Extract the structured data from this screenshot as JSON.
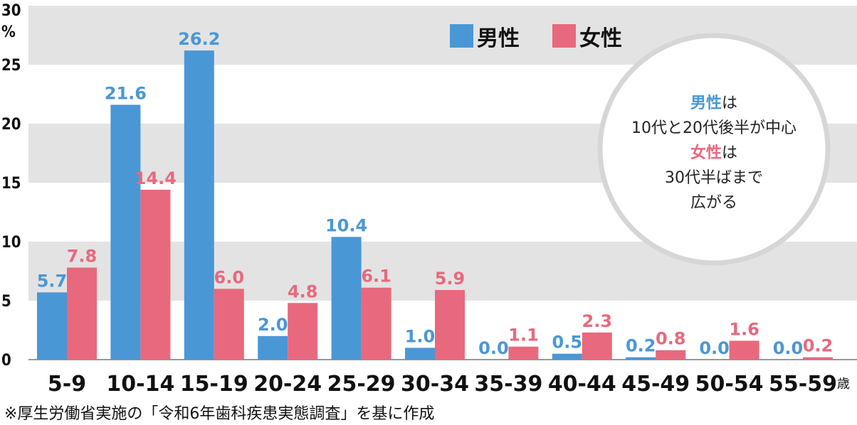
{
  "chart_data": {
    "type": "bar",
    "categories": [
      "5-9",
      "10-14",
      "15-19",
      "20-24",
      "25-29",
      "30-34",
      "35-39",
      "40-44",
      "45-49",
      "50-54",
      "55-59"
    ],
    "x_unit": "歳",
    "y_unit": "%",
    "yticks": [
      "0",
      "5",
      "10",
      "15",
      "20",
      "25",
      "30"
    ],
    "ylim": [
      0,
      30
    ],
    "grid": "alternating horizontal bands",
    "legend_position": "top-right",
    "series": [
      {
        "name": "男性",
        "color": "#4a97d6",
        "values": [
          5.7,
          21.6,
          26.2,
          2.0,
          10.4,
          1.0,
          0.0,
          0.5,
          0.2,
          0.0,
          0.0
        ],
        "labels": [
          "5.7",
          "21.6",
          "26.2",
          "2.0",
          "10.4",
          "1.0",
          "0.0",
          "0.5",
          "0.2",
          "0.0",
          "0.0"
        ]
      },
      {
        "name": "女性",
        "color": "#e8697d",
        "values": [
          7.8,
          14.4,
          6.0,
          4.8,
          6.1,
          5.9,
          1.1,
          2.3,
          0.8,
          1.6,
          0.2
        ],
        "labels": [
          "7.8",
          "14.4",
          "6.0",
          "4.8",
          "6.1",
          "5.9",
          "1.1",
          "2.3",
          "0.8",
          "1.6",
          "0.2"
        ]
      }
    ],
    "annotation": {
      "line1_highlight": "男性",
      "line1_rest": "は",
      "line2": "10代と20代後半が中心",
      "line3_highlight": "女性",
      "line3_rest": "は",
      "line4": "30代半ばまで",
      "line5": "広がる"
    },
    "note": "※厚生労働省実施の「令和6年歯科疾患実態調査」を基に作成"
  }
}
